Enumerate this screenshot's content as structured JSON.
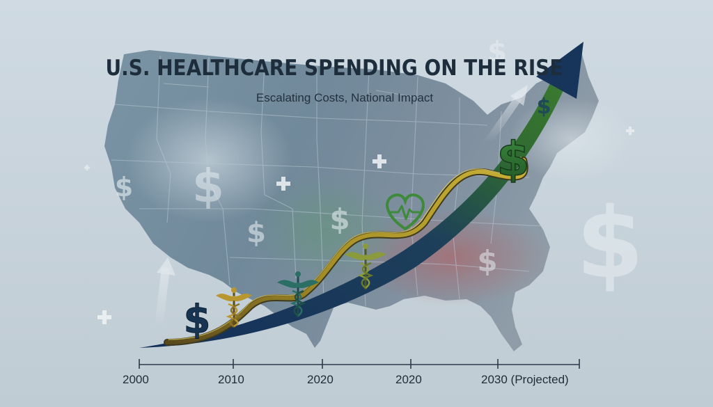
{
  "title": "U.S. HEALTHCARE SPENDING ON THE RISE",
  "subtitle": "Escalating Costs, National Impact",
  "timeline": {
    "labels": [
      "2000",
      "2010",
      "2020",
      "2020",
      "2030 (Projected)"
    ]
  },
  "icons": {
    "currency": "dollar-sign",
    "medical": "caduceus",
    "health": "heart-pulse",
    "cross": "plus"
  },
  "colors": {
    "background": "#c5d2db",
    "map": "#6f8798",
    "arrow_dark": "#143058",
    "arrow_green": "#2d6a2c",
    "ribbon_gold": "#b49a28",
    "dollar_green": "#2f6b32",
    "dollar_navy": "#173552",
    "heart_green": "#3e8a3a"
  }
}
